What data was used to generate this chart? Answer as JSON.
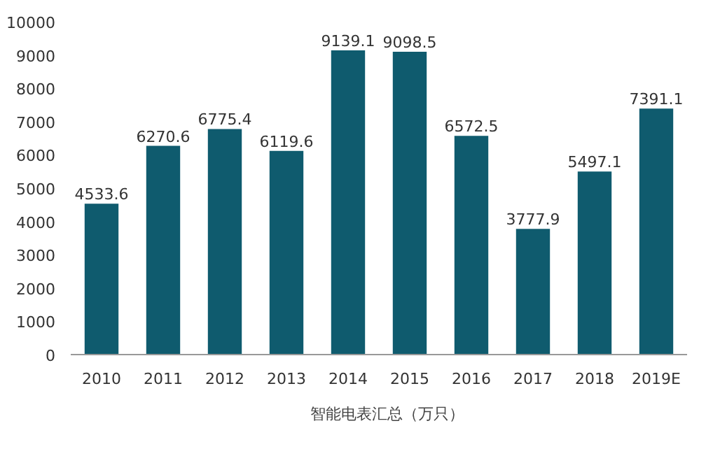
{
  "chart_data": {
    "type": "bar",
    "categories": [
      "2010",
      "2011",
      "2012",
      "2013",
      "2014",
      "2015",
      "2016",
      "2017",
      "2018",
      "2019E"
    ],
    "series": [
      {
        "name": "智能电表汇总（万只）",
        "color": "#0f5b6e",
        "values": [
          4533.6,
          6270.6,
          6775.4,
          6119.6,
          9139.1,
          9098.5,
          6572.5,
          3777.9,
          5497.1,
          7391.1
        ]
      }
    ],
    "ylim": [
      0,
      10000
    ],
    "yticks": [
      0,
      1000,
      2000,
      3000,
      4000,
      5000,
      6000,
      7000,
      8000,
      9000,
      10000
    ],
    "data_labels": true,
    "legend": "bottom",
    "grid": false
  }
}
